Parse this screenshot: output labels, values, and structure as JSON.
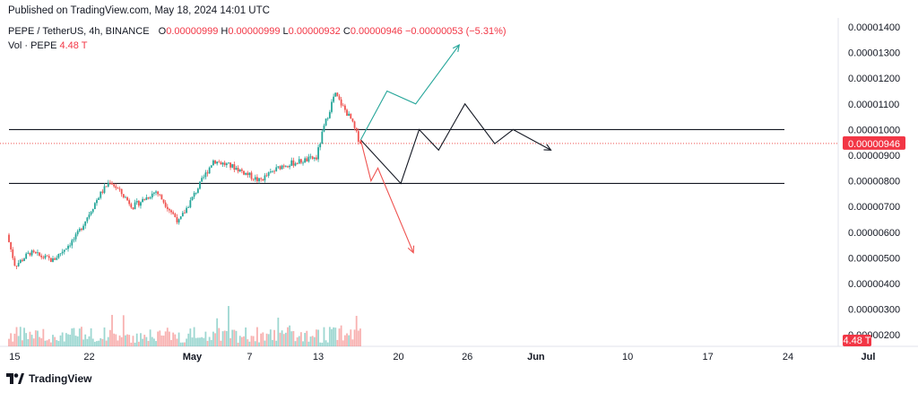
{
  "header": {
    "published": "Published on TradingView.com, May 18, 2024 14:01 UTC"
  },
  "legend": {
    "symbol": "PEPE / TetherUS, 4h, BINANCE",
    "o_label": "O",
    "o_value": "0.00000999",
    "h_label": "H",
    "h_value": "0.00000999",
    "l_label": "L",
    "l_value": "0.00000932",
    "c_label": "C",
    "c_value": "0.00000946",
    "change": "−0.00000053 (−5.31%)",
    "vol_label": "Vol · PEPE",
    "vol_value": "4.48 T"
  },
  "footer": {
    "brand": "TradingView"
  },
  "colors": {
    "up": "#26a69a",
    "down": "#ef5350",
    "price_badge": "#f23645",
    "text": "#131722"
  },
  "chart_data": {
    "type": "candlestick",
    "interval": "4h",
    "y_ticks": [
      "0.00000200",
      "0.00000300",
      "0.00000400",
      "0.00000500",
      "0.00000600",
      "0.00000700",
      "0.00000800",
      "0.00000900",
      "0.00001000",
      "0.00001100",
      "0.00001200",
      "0.00001300",
      "0.00001400"
    ],
    "x_ticks": [
      "15",
      "22",
      "May",
      "7",
      "13",
      "20",
      "26",
      "Jun",
      "10",
      "17",
      "24",
      "Jul"
    ],
    "ylim": [
      1.9e-06,
      1.43e-05
    ],
    "last_price_label": "0.00000946",
    "volume_label": "4.48 T",
    "horizontal_levels": [
      1e-05,
      7.9e-06
    ],
    "price_anchors": [
      {
        "d": 0,
        "p": 5.9e-06
      },
      {
        "d": 0.7,
        "p": 4.7e-06
      },
      {
        "d": 2,
        "p": 5.2e-06
      },
      {
        "d": 4,
        "p": 4.9e-06
      },
      {
        "d": 6,
        "p": 5.8e-06
      },
      {
        "d": 8,
        "p": 7.4e-06
      },
      {
        "d": 9,
        "p": 8e-06
      },
      {
        "d": 11,
        "p": 7e-06
      },
      {
        "d": 13,
        "p": 7.6e-06
      },
      {
        "d": 15,
        "p": 6.4e-06
      },
      {
        "d": 17,
        "p": 8e-06
      },
      {
        "d": 18,
        "p": 8.8e-06
      },
      {
        "d": 20,
        "p": 8.5e-06
      },
      {
        "d": 22,
        "p": 8e-06
      },
      {
        "d": 24,
        "p": 8.6e-06
      },
      {
        "d": 26,
        "p": 8.8e-06
      },
      {
        "d": 27,
        "p": 8.9e-06
      },
      {
        "d": 27.6,
        "p": 1e-05
      },
      {
        "d": 28.6,
        "p": 1.14e-05
      },
      {
        "d": 30,
        "p": 1.04e-05
      },
      {
        "d": 30.7,
        "p": 9.6e-06
      }
    ],
    "projections": [
      {
        "name": "bullish",
        "color": "#26a69a",
        "points": [
          {
            "d": 30.7,
            "p": 9.6e-06
          },
          {
            "d": 33,
            "p": 1.15e-05
          },
          {
            "d": 35.5,
            "p": 1.1e-05
          },
          {
            "d": 39.3,
            "p": 1.33e-05
          }
        ]
      },
      {
        "name": "neutral",
        "color": "#131722",
        "points": [
          {
            "d": 30.7,
            "p": 9.6e-06
          },
          {
            "d": 34.2,
            "p": 7.9e-06
          },
          {
            "d": 35.8,
            "p": 1e-05
          },
          {
            "d": 37.5,
            "p": 9.2e-06
          },
          {
            "d": 39.8,
            "p": 1.1e-05
          },
          {
            "d": 42.4,
            "p": 9.45e-06
          },
          {
            "d": 44,
            "p": 1e-05
          },
          {
            "d": 47.3,
            "p": 9.2e-06
          }
        ]
      },
      {
        "name": "bearish",
        "color": "#ef5350",
        "points": [
          {
            "d": 30.7,
            "p": 9.6e-06
          },
          {
            "d": 31.6,
            "p": 8e-06
          },
          {
            "d": 32.2,
            "p": 8.5e-06
          },
          {
            "d": 35.3,
            "p": 5.2e-06
          }
        ]
      }
    ]
  }
}
